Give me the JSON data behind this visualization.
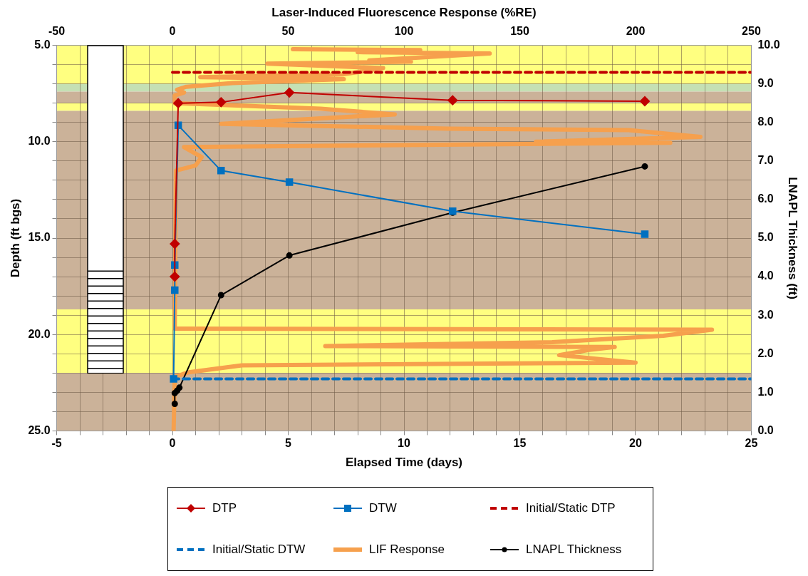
{
  "chart_data": {
    "type": "line",
    "xlabel": "Elapsed Time (days)",
    "x2label": "Laser-Induced Fluorescence Response (%RE)",
    "ylabel": "Depth (ft bgs)",
    "y2label": "LNAPL Thickness (ft)",
    "xlim": [
      -5,
      25
    ],
    "xticks": [
      -5,
      {
        "value": -4,
        "label": null
      },
      {
        "value": -3,
        "label": null
      },
      {
        "value": -2,
        "label": null
      },
      {
        "value": -1,
        "label": null
      },
      0,
      {
        "value": 1,
        "label": null
      },
      {
        "value": 2,
        "label": null
      },
      {
        "value": 3,
        "label": null
      },
      {
        "value": 4,
        "label": null
      },
      5,
      {
        "value": 6,
        "label": null
      },
      {
        "value": 7,
        "label": null
      },
      {
        "value": 8,
        "label": null
      },
      {
        "value": 9,
        "label": null
      },
      10,
      {
        "value": 11,
        "label": null
      },
      {
        "value": 12,
        "label": null
      },
      {
        "value": 13,
        "label": null
      },
      {
        "value": 14,
        "label": null
      },
      15,
      {
        "value": 16,
        "label": null
      },
      {
        "value": 17,
        "label": null
      },
      {
        "value": 18,
        "label": null
      },
      {
        "value": 19,
        "label": null
      },
      20,
      {
        "value": 21,
        "label": null
      },
      {
        "value": 22,
        "label": null
      },
      {
        "value": 23,
        "label": null
      },
      {
        "value": 24,
        "label": null
      },
      25
    ],
    "x2lim": [
      -50,
      250
    ],
    "x2ticks": [
      -50,
      0,
      50,
      100,
      150,
      200,
      250
    ],
    "ylim": [
      25,
      5
    ],
    "yticks": [
      {
        "value": 5,
        "label": "5.0"
      },
      {
        "value": 6,
        "label": null
      },
      {
        "value": 7,
        "label": null
      },
      {
        "value": 8,
        "label": null
      },
      {
        "value": 9,
        "label": null
      },
      {
        "value": 10,
        "label": "10.0"
      },
      {
        "value": 11,
        "label": null
      },
      {
        "value": 12,
        "label": null
      },
      {
        "value": 13,
        "label": null
      },
      {
        "value": 14,
        "label": null
      },
      {
        "value": 15,
        "label": "15.0"
      },
      {
        "value": 16,
        "label": null
      },
      {
        "value": 17,
        "label": null
      },
      {
        "value": 18,
        "label": null
      },
      {
        "value": 19,
        "label": null
      },
      {
        "value": 20,
        "label": "20.0"
      },
      {
        "value": 21,
        "label": null
      },
      {
        "value": 22,
        "label": null
      },
      {
        "value": 23,
        "label": null
      },
      {
        "value": 24,
        "label": null
      },
      {
        "value": 25,
        "label": "25.0"
      }
    ],
    "y2lim": [
      0,
      10
    ],
    "y2ticks": [
      {
        "value": 0,
        "label": "0.0"
      },
      {
        "value": 1,
        "label": "1.0"
      },
      {
        "value": 2,
        "label": "2.0"
      },
      {
        "value": 3,
        "label": "3.0"
      },
      {
        "value": 4,
        "label": "4.0"
      },
      {
        "value": 5,
        "label": "5.0"
      },
      {
        "value": 6,
        "label": "6.0"
      },
      {
        "value": 7,
        "label": "7.0"
      },
      {
        "value": 8,
        "label": "8.0"
      },
      {
        "value": 9,
        "label": "9.0"
      },
      {
        "value": 10,
        "label": "10.0"
      }
    ],
    "grid": true,
    "legend": "bottom",
    "bands": [
      {
        "axis": "y",
        "from": 5.0,
        "to": 7.0,
        "color": "#ffff80"
      },
      {
        "axis": "y",
        "from": 7.0,
        "to": 7.4,
        "color": "#c5e0b4"
      },
      {
        "axis": "y",
        "from": 7.4,
        "to": 8.0,
        "color": "#cbb299"
      },
      {
        "axis": "y",
        "from": 8.0,
        "to": 8.4,
        "color": "#ffff80"
      },
      {
        "axis": "y",
        "from": 8.4,
        "to": 18.7,
        "color": "#cbb299"
      },
      {
        "axis": "y",
        "from": 18.7,
        "to": 22.0,
        "color": "#ffff80"
      },
      {
        "axis": "y",
        "from": 22.0,
        "to": 25.0,
        "color": "#cbb299"
      }
    ],
    "series": [
      {
        "name": "DTP",
        "color": "#c00000",
        "marker": "diamond",
        "x": [
          0.1,
          0.1,
          0.25,
          2.1,
          5.05,
          12.1,
          20.4
        ],
        "values": [
          17.0,
          15.3,
          8.0,
          7.95,
          7.45,
          7.85,
          7.9
        ]
      },
      {
        "name": "DTW",
        "color": "#0070c0",
        "marker": "square",
        "x": [
          0.05,
          0.1,
          0.1,
          0.25,
          2.1,
          5.05,
          12.1,
          20.4
        ],
        "values": [
          22.3,
          17.7,
          16.4,
          9.15,
          11.5,
          12.1,
          13.6,
          14.8
        ]
      },
      {
        "name": "Initial/Static DTP",
        "color": "#c00000",
        "marker": "none",
        "line_style": "dashed",
        "x": [
          0,
          25
        ],
        "values": [
          6.4,
          6.4
        ]
      },
      {
        "name": "Initial/Static DTW",
        "color": "#0070c0",
        "marker": "none",
        "line_style": "dashed",
        "x": [
          0,
          25
        ],
        "values": [
          22.3,
          22.3
        ]
      },
      {
        "name": "LIF Response",
        "axis": "x2",
        "color": "#f6a04d",
        "marker": "none",
        "x": [
          52,
          107,
          80,
          137,
          85,
          103,
          41,
          91,
          74,
          12,
          74,
          26,
          6,
          2,
          5,
          1,
          1,
          64,
          96,
          21,
          119,
          197,
          228,
          157,
          215,
          5,
          12.6,
          10,
          1.5,
          1,
          233,
          212,
          164,
          66,
          191,
          180,
          167,
          200,
          30,
          7,
          1,
          0.5
        ],
        "values": [
          5.2,
          5.25,
          5.35,
          5.42,
          5.78,
          5.85,
          5.95,
          6.18,
          6.5,
          6.65,
          6.75,
          6.96,
          7.15,
          7.3,
          7.45,
          7.6,
          8.0,
          8.29,
          8.58,
          9.07,
          9.32,
          9.4,
          9.75,
          10.0,
          10.05,
          10.28,
          10.8,
          11.23,
          11.5,
          19.7,
          19.75,
          20.07,
          20.4,
          20.6,
          20.65,
          20.8,
          21.07,
          21.46,
          21.6,
          21.96,
          22.2,
          25.0
        ]
      },
      {
        "name": "LNAPL Thickness",
        "axis": "y2",
        "color": "#000000",
        "marker": "circle",
        "x": [
          0.1,
          0.1,
          0.2,
          0.3,
          2.1,
          5.05,
          12.1,
          20.4
        ],
        "values": [
          0.7,
          0.98,
          1.04,
          1.12,
          3.52,
          4.55,
          5.66,
          6.86
        ]
      }
    ]
  }
}
